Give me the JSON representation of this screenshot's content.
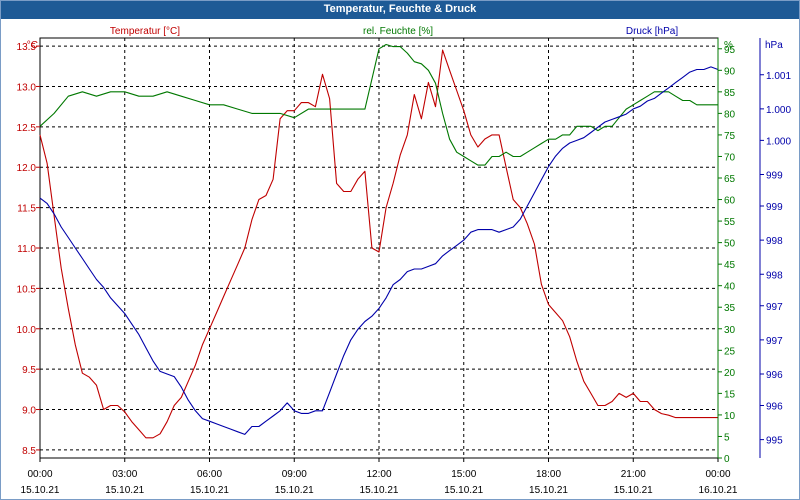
{
  "chart_data": {
    "type": "line",
    "title": "Temperatur, Feuchte & Druck",
    "series_labels": {
      "temperature": "Temperatur [°C]",
      "humidity": "rel. Feuchte [%]",
      "pressure": "Druck [hPa]"
    },
    "axis_units": {
      "left": "°C",
      "middle": "%",
      "right": "hPa"
    },
    "colors": {
      "temperature": "#c00000",
      "humidity": "#007800",
      "pressure": "#0000aa",
      "grid": "#000000",
      "title_bar": "#1e5a96"
    },
    "grid": true,
    "x_ticks": [
      {
        "time": "00:00",
        "date": "15.10.21"
      },
      {
        "time": "03:00",
        "date": "15.10.21"
      },
      {
        "time": "06:00",
        "date": "15.10.21"
      },
      {
        "time": "09:00",
        "date": "15.10.21"
      },
      {
        "time": "12:00",
        "date": "15.10.21"
      },
      {
        "time": "15:00",
        "date": "15.10.21"
      },
      {
        "time": "18:00",
        "date": "15.10.21"
      },
      {
        "time": "21:00",
        "date": "15.10.21"
      },
      {
        "time": "00:00",
        "date": "16.10.21"
      }
    ],
    "xlim": [
      0,
      24
    ],
    "y_left": {
      "lim": [
        8.4,
        13.6
      ],
      "ticks": [
        "8.5",
        "9.0",
        "9.5",
        "10.0",
        "10.5",
        "11.0",
        "11.5",
        "12.0",
        "12.5",
        "13.0",
        "13.5"
      ],
      "tick_values": [
        8.5,
        9.0,
        9.5,
        10.0,
        10.5,
        11.0,
        11.5,
        12.0,
        12.5,
        13.0,
        13.5
      ]
    },
    "y_mid": {
      "lim": [
        0,
        97.5
      ],
      "ticks": [
        "0",
        "5",
        "10",
        "15",
        "20",
        "25",
        "30",
        "35",
        "40",
        "45",
        "50",
        "55",
        "60",
        "65",
        "70",
        "75",
        "80",
        "85",
        "90",
        "95"
      ],
      "tick_values": [
        0,
        5,
        10,
        15,
        20,
        25,
        30,
        35,
        40,
        45,
        50,
        55,
        60,
        65,
        70,
        75,
        80,
        85,
        90,
        95
      ]
    },
    "y_right": {
      "lim": [
        994.65,
        1002.65
      ],
      "ticks": [
        "995",
        "996",
        "996",
        "997",
        "997",
        "998",
        "998",
        "999",
        "999",
        "1.000",
        "1.000",
        "1.001"
      ],
      "tick_values": [
        995.0,
        995.65,
        996.25,
        996.9,
        997.55,
        998.15,
        998.8,
        999.45,
        1000.05,
        1000.7,
        1001.3,
        1001.95
      ]
    },
    "series": [
      {
        "name": "Temperatur [°C]",
        "key": "temperature",
        "axis": "left",
        "x": [
          0,
          0.25,
          0.5,
          0.75,
          1,
          1.25,
          1.5,
          1.75,
          2,
          2.25,
          2.5,
          2.75,
          3,
          3.25,
          3.5,
          3.75,
          4,
          4.25,
          4.5,
          4.75,
          5,
          5.25,
          5.5,
          5.75,
          6,
          6.25,
          6.5,
          6.75,
          7,
          7.25,
          7.5,
          7.75,
          8,
          8.25,
          8.5,
          8.75,
          9,
          9.25,
          9.5,
          9.75,
          10,
          10.25,
          10.5,
          10.75,
          11,
          11.25,
          11.5,
          11.75,
          12,
          12.25,
          12.5,
          12.75,
          13,
          13.25,
          13.5,
          13.75,
          14,
          14.25,
          14.5,
          14.75,
          15,
          15.25,
          15.5,
          15.75,
          16,
          16.25,
          16.5,
          16.75,
          17,
          17.25,
          17.5,
          17.75,
          18,
          18.25,
          18.5,
          18.75,
          19,
          19.25,
          19.5,
          19.75,
          20,
          20.25,
          20.5,
          20.75,
          21,
          21.25,
          21.5,
          21.75,
          22,
          22.25,
          22.5,
          22.75,
          23,
          23.25,
          23.5,
          23.75,
          24
        ],
        "values": [
          12.4,
          12.05,
          11.4,
          10.75,
          10.25,
          9.8,
          9.45,
          9.4,
          9.3,
          9.0,
          9.05,
          9.05,
          8.97,
          8.85,
          8.75,
          8.65,
          8.65,
          8.7,
          8.85,
          9.05,
          9.15,
          9.35,
          9.55,
          9.8,
          10.0,
          10.2,
          10.4,
          10.6,
          10.8,
          11.0,
          11.35,
          11.6,
          11.65,
          11.85,
          12.6,
          12.7,
          12.7,
          12.8,
          12.8,
          12.75,
          13.15,
          12.85,
          11.8,
          11.7,
          11.7,
          11.85,
          11.95,
          11.0,
          10.95,
          11.5,
          11.8,
          12.15,
          12.4,
          12.9,
          12.6,
          13.05,
          12.75,
          13.45,
          13.2,
          12.95,
          12.7,
          12.4,
          12.25,
          12.35,
          12.4,
          12.4,
          12.0,
          11.6,
          11.5,
          11.3,
          11.05,
          10.55,
          10.3,
          10.2,
          10.1,
          9.9,
          9.6,
          9.35,
          9.2,
          9.05,
          9.05,
          9.1,
          9.2,
          9.15,
          9.2,
          9.1,
          9.1,
          9.0,
          8.95,
          8.93,
          8.9,
          8.9,
          8.9,
          8.9,
          8.9,
          8.9,
          8.9
        ]
      },
      {
        "name": "rel. Feuchte [%]",
        "key": "humidity",
        "axis": "mid",
        "x": [
          0,
          0.5,
          1,
          1.5,
          2,
          2.5,
          3,
          3.5,
          4,
          4.5,
          5,
          5.5,
          6,
          6.5,
          7,
          7.5,
          8,
          8.5,
          9,
          9.5,
          10,
          10.5,
          11,
          11.5,
          12,
          12.25,
          12.5,
          12.75,
          13,
          13.25,
          13.5,
          13.75,
          14,
          14.25,
          14.5,
          14.75,
          15,
          15.25,
          15.5,
          15.75,
          16,
          16.25,
          16.5,
          16.75,
          17,
          17.25,
          17.5,
          17.75,
          18,
          18.25,
          18.5,
          18.75,
          19,
          19.25,
          19.5,
          19.75,
          20,
          20.25,
          20.5,
          20.75,
          21,
          21.25,
          21.5,
          21.75,
          22,
          22.25,
          22.5,
          22.75,
          23,
          23.25,
          23.5,
          23.75,
          24
        ],
        "values": [
          77,
          80,
          84,
          85,
          84,
          85,
          85,
          84,
          84,
          85,
          84,
          83,
          82,
          82,
          81,
          80,
          80,
          80,
          79,
          81,
          81,
          81,
          81,
          81,
          95,
          96,
          95.5,
          95.5,
          94,
          92,
          91.5,
          90,
          87,
          80,
          74,
          71,
          70,
          69,
          68,
          68,
          70,
          70,
          71,
          70,
          70,
          71,
          72,
          73,
          74,
          74,
          75,
          75,
          77,
          77,
          77,
          76,
          77,
          77,
          79,
          81,
          82,
          83,
          84,
          85,
          85,
          85,
          84,
          83,
          83,
          82,
          82,
          82,
          82
        ]
      },
      {
        "name": "Druck [hPa]",
        "key": "pressure",
        "axis": "right",
        "x": [
          0,
          0.25,
          0.5,
          0.75,
          1,
          1.25,
          1.5,
          1.75,
          2,
          2.25,
          2.5,
          2.75,
          3,
          3.25,
          3.5,
          3.75,
          4,
          4.25,
          4.5,
          4.75,
          5,
          5.25,
          5.5,
          5.75,
          6,
          6.25,
          6.5,
          6.75,
          7,
          7.25,
          7.5,
          7.75,
          8,
          8.25,
          8.5,
          8.75,
          9,
          9.25,
          9.5,
          9.75,
          10,
          10.25,
          10.5,
          10.75,
          11,
          11.25,
          11.5,
          11.75,
          12,
          12.25,
          12.5,
          12.75,
          13,
          13.25,
          13.5,
          13.75,
          14,
          14.25,
          14.5,
          14.75,
          15,
          15.25,
          15.5,
          15.75,
          16,
          16.25,
          16.5,
          16.75,
          17,
          17.25,
          17.5,
          17.75,
          18,
          18.25,
          18.5,
          18.75,
          19,
          19.25,
          19.5,
          19.75,
          20,
          20.25,
          20.5,
          20.75,
          21,
          21.25,
          21.5,
          21.75,
          22,
          22.25,
          22.5,
          22.75,
          23,
          23.25,
          23.5,
          23.75,
          24
        ],
        "values": [
          999.6,
          999.5,
          999.3,
          999.05,
          998.85,
          998.65,
          998.45,
          998.25,
          998.05,
          997.9,
          997.7,
          997.55,
          997.4,
          997.2,
          997.0,
          996.75,
          996.5,
          996.3,
          996.25,
          996.2,
          996.0,
          995.75,
          995.55,
          995.4,
          995.35,
          995.3,
          995.25,
          995.2,
          995.15,
          995.1,
          995.25,
          995.25,
          995.35,
          995.45,
          995.55,
          995.7,
          995.55,
          995.5,
          995.5,
          995.55,
          995.55,
          995.9,
          996.25,
          996.6,
          996.9,
          997.1,
          997.25,
          997.35,
          997.5,
          997.7,
          997.95,
          998.05,
          998.2,
          998.25,
          998.25,
          998.3,
          998.35,
          998.5,
          998.6,
          998.7,
          998.8,
          998.95,
          999.0,
          999.0,
          999.0,
          998.95,
          999.0,
          999.05,
          999.2,
          999.45,
          999.7,
          999.95,
          1000.2,
          1000.4,
          1000.55,
          1000.65,
          1000.7,
          1000.75,
          1000.85,
          1000.95,
          1001.05,
          1001.1,
          1001.15,
          1001.2,
          1001.3,
          1001.35,
          1001.45,
          1001.5,
          1001.6,
          1001.7,
          1001.8,
          1001.9,
          1002.0,
          1002.05,
          1002.05,
          1002.1,
          1002.05
        ]
      }
    ]
  }
}
